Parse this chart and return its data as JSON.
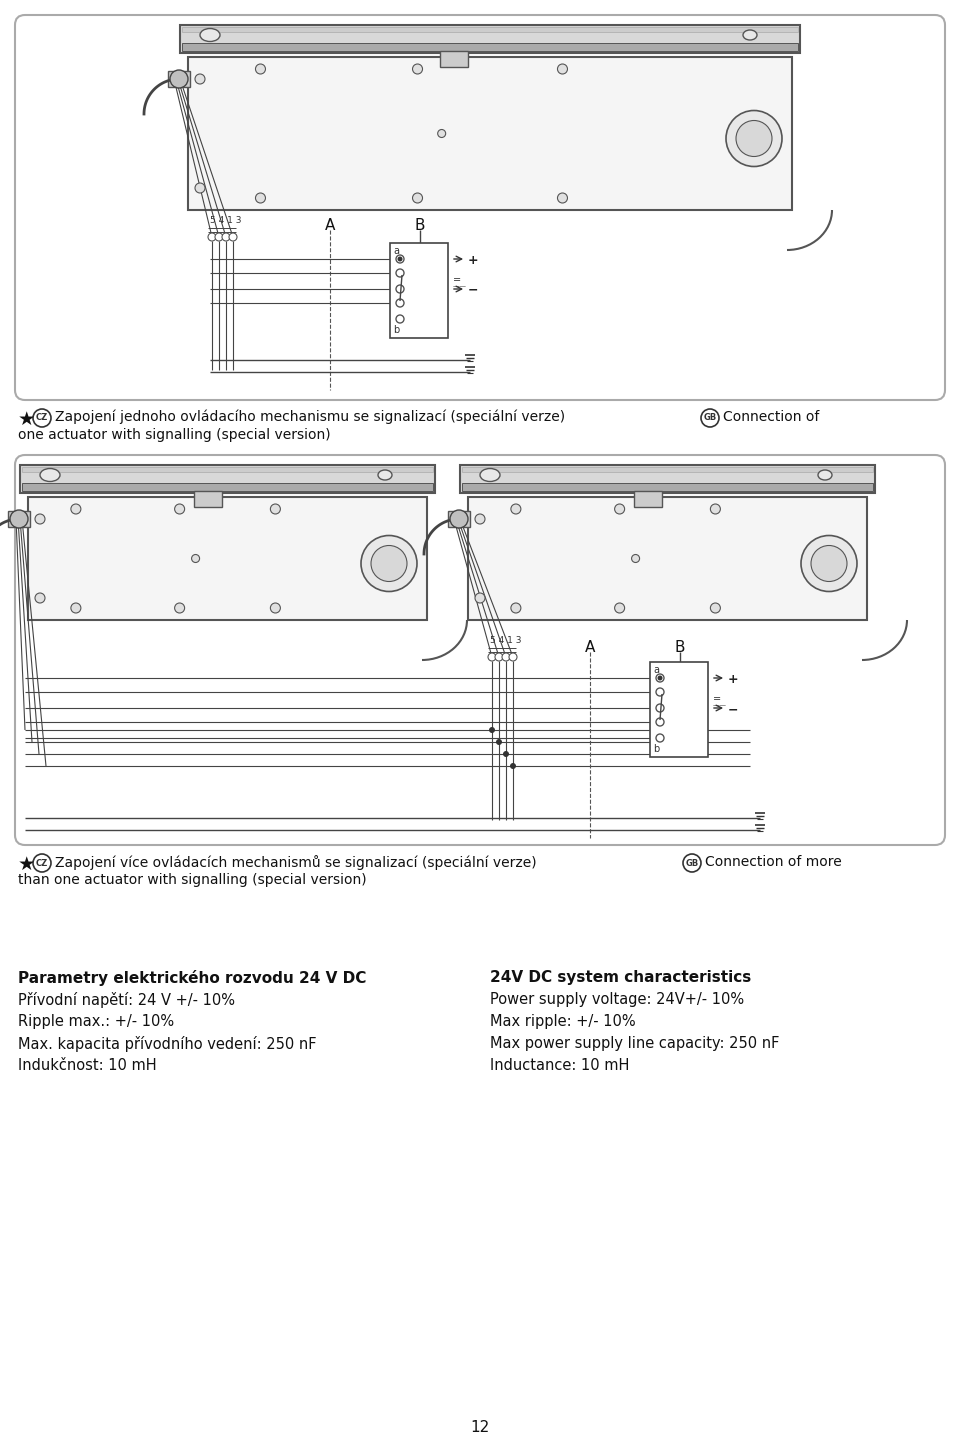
{
  "background_color": "#ffffff",
  "page_number": "12",
  "diagram1_caption_cz_text": "Zapojení jednoho ovládacího mechanismu se signalizací (speciální verze)",
  "diagram1_caption_gb_text": "Connection of one actuator with signalling (special version)",
  "diagram2_caption_cz_text": "Zapojení více ovládacích mechanismů se signalizací (speciální verze)",
  "diagram2_caption_gb_text": "Connection of more than one actuator with signalling (special version)",
  "params_title_cz": "Parametry elektrického rozvodu 24 V DC",
  "params_lines_cz": [
    "Přívodní napětí: 24 V +/- 10%",
    "Ripple max.: +/- 10%",
    "Max. kapacita přívodního vedení: 250 nF",
    "Indukčnost: 10 mH"
  ],
  "params_title_en": "24V DC system characteristics",
  "params_lines_en": [
    "Power supply voltage: 24V+/- 10%",
    "Max ripple: +/- 10%",
    "Max power supply line capacity: 250 nF",
    "Inductance: 10 mH"
  ]
}
